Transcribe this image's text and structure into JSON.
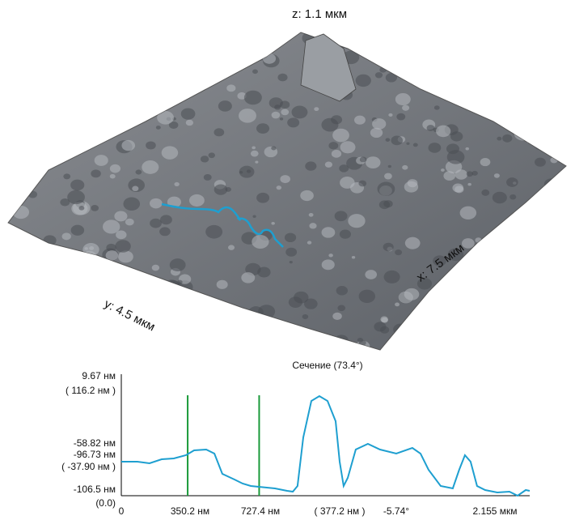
{
  "surface": {
    "z_label": "z: 1.1 мкм",
    "x_label": "x: 7.5 мкм",
    "y_label": "у: 4.5 мкм"
  },
  "chart_data": {
    "type": "line",
    "title": "Сечение (73.4°)",
    "x": [
      0,
      0.085,
      0.149,
      0.213,
      0.277,
      0.341,
      0.384,
      0.448,
      0.491,
      0.533,
      0.597,
      0.64,
      0.683,
      0.725,
      0.811,
      0.875,
      0.905,
      0.93,
      0.96,
      1.003,
      1.045,
      1.088,
      1.131,
      1.152,
      1.173,
      1.195,
      1.237,
      1.301,
      1.365,
      1.451,
      1.536,
      1.579,
      1.621,
      1.685,
      1.749,
      1.783,
      1.813,
      1.843,
      1.877,
      1.92,
      1.984,
      2.048,
      2.091,
      2.134,
      2.155
    ],
    "series": [
      {
        "color": "#1e9fd0",
        "values": [
          36.4,
          36.4,
          34.7,
          39.0,
          39.9,
          43.3,
          48.5,
          49.4,
          45.1,
          23.4,
          17.3,
          13.0,
          10.4,
          9.5,
          7.8,
          5.2,
          4.3,
          10.4,
          62.4,
          101.4,
          106.6,
          101.4,
          79.7,
          36.4,
          10.4,
          19.1,
          49.4,
          55.5,
          49.4,
          45.1,
          51.1,
          45.1,
          27.7,
          10.4,
          7.8,
          27.7,
          43.3,
          36.4,
          10.4,
          6.1,
          3.5,
          4.3,
          0,
          6.1,
          5.2
        ]
      }
    ],
    "xlim": [
      0,
      2.155
    ],
    "ylim": [
      0,
      130
    ],
    "cursors": [
      0.3502,
      0.7274
    ],
    "cursor_color": "#1a9a3a",
    "y_labels": [
      "9.67 нм",
      "( 116.2 нм )",
      "-58.82 нм",
      "-96.73 нм",
      "( -37.90 нм )",
      "-106.5 нм",
      "(0.0)"
    ],
    "x_labels": [
      "0",
      "350.2 нм",
      "727.4 нм",
      "( 377.2 нм )",
      "-5.74°",
      "2.155 мкм"
    ]
  }
}
